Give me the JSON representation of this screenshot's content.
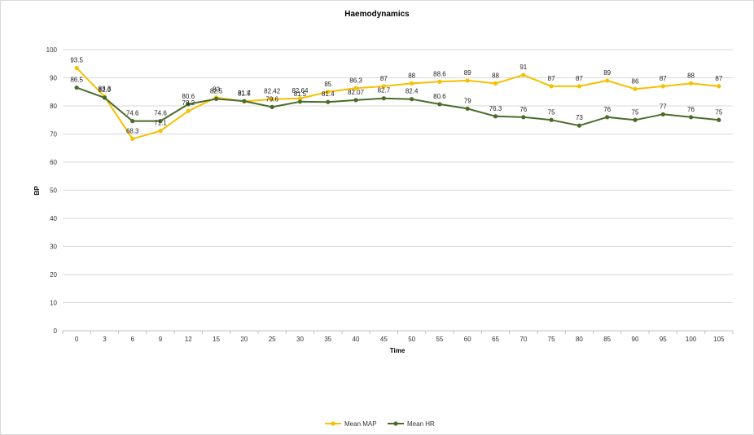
{
  "chart_data": {
    "type": "line",
    "title": "Haemodynamics",
    "xlabel": "Time",
    "ylabel": "BP",
    "categories": [
      "0",
      "3",
      "6",
      "9",
      "12",
      "15",
      "20",
      "25",
      "30",
      "35",
      "40",
      "45",
      "50",
      "55",
      "60",
      "65",
      "70",
      "75",
      "80",
      "85",
      "90",
      "95",
      "100",
      "105"
    ],
    "ylim": [
      0,
      100
    ],
    "yticks": [
      0,
      10,
      20,
      30,
      40,
      50,
      60,
      70,
      80,
      90,
      100
    ],
    "grid": "horizontal",
    "legend_position": "bottom",
    "series": [
      {
        "name": "Mean MAP",
        "color": "#F5C000",
        "values": [
          93.5,
          83.3,
          68.3,
          71.1,
          78.2,
          83,
          81.6,
          82.42,
          82.64,
          85,
          86.3,
          87,
          88,
          88.6,
          89,
          88,
          91,
          87,
          87,
          89,
          86,
          87,
          88,
          87
        ],
        "labels": [
          "93.5",
          "83.3",
          "68.3",
          "71.1",
          "78.2",
          "83",
          "81.6",
          "82.42",
          "82.64",
          "85",
          "86.3",
          "87",
          "88",
          "88.6",
          "89",
          "88",
          "91",
          "87",
          "87",
          "89",
          "86",
          "87",
          "88",
          "87"
        ]
      },
      {
        "name": "Mean HR",
        "color": "#4A6B2A",
        "values": [
          86.5,
          82.9,
          74.6,
          74.6,
          80.6,
          82.5,
          81.7,
          79.6,
          81.5,
          81.4,
          82.07,
          82.7,
          82.4,
          80.6,
          79,
          76.3,
          76,
          75,
          73,
          76,
          75,
          77,
          76,
          75
        ],
        "labels": [
          "86.5",
          "82.9",
          "74.6",
          "74.6",
          "80.6",
          "82.5",
          "81.7",
          "79.6",
          "81.5",
          "81.4",
          "82.07",
          "82.7",
          "82.4",
          "80.6",
          "79",
          "76.3",
          "76",
          "75",
          "73",
          "76",
          "75",
          "77",
          "76",
          "75"
        ]
      }
    ]
  }
}
